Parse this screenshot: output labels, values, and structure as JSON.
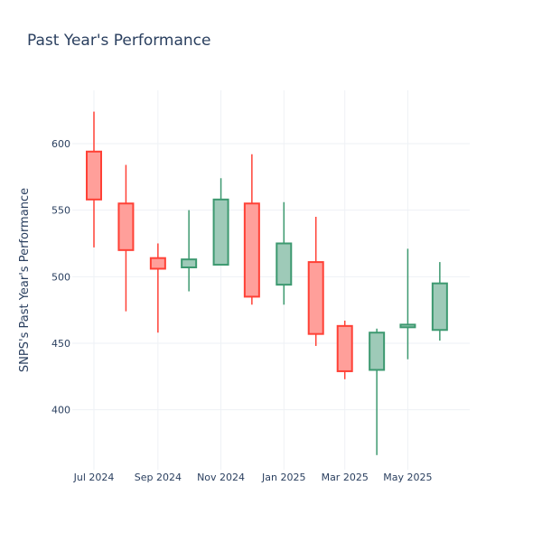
{
  "chart_data": {
    "type": "candlestick",
    "title": "Past Year's Performance",
    "xlabel": "",
    "ylabel": "SNPS's Past Year's Performance",
    "xlim": [
      "2024-06-10",
      "2025-06-30"
    ],
    "ylim": [
      355,
      640
    ],
    "y_ticks": [
      400,
      450,
      500,
      550,
      600
    ],
    "x_ticks": [
      {
        "date": "2024-07-01",
        "label": "Jul 2024"
      },
      {
        "date": "2024-09-01",
        "label": "Sep 2024"
      },
      {
        "date": "2024-11-01",
        "label": "Nov 2024"
      },
      {
        "date": "2025-01-01",
        "label": "Jan 2025"
      },
      {
        "date": "2025-03-01",
        "label": "Mar 2025"
      },
      {
        "date": "2025-05-01",
        "label": "May 2025"
      }
    ],
    "grid": true,
    "candles": [
      {
        "date": "2024-07-01",
        "open": 594,
        "high": 624,
        "low": 522,
        "close": 558
      },
      {
        "date": "2024-08-01",
        "open": 555,
        "high": 584,
        "low": 474,
        "close": 520
      },
      {
        "date": "2024-09-01",
        "open": 514,
        "high": 525,
        "low": 458,
        "close": 506
      },
      {
        "date": "2024-10-01",
        "open": 507,
        "high": 550,
        "low": 489,
        "close": 513
      },
      {
        "date": "2024-11-01",
        "open": 509,
        "high": 574,
        "low": 509,
        "close": 558
      },
      {
        "date": "2024-12-01",
        "open": 555,
        "high": 592,
        "low": 479,
        "close": 485
      },
      {
        "date": "2025-01-01",
        "open": 494,
        "high": 556,
        "low": 479,
        "close": 525
      },
      {
        "date": "2025-02-01",
        "open": 511,
        "high": 545,
        "low": 448,
        "close": 457
      },
      {
        "date": "2025-03-01",
        "open": 463,
        "high": 467,
        "low": 423,
        "close": 429
      },
      {
        "date": "2025-04-01",
        "open": 430,
        "high": 461,
        "low": 366,
        "close": 458
      },
      {
        "date": "2025-05-01",
        "open": 462,
        "high": 521,
        "low": 438,
        "close": 464
      },
      {
        "date": "2025-06-01",
        "open": 460,
        "high": 511,
        "low": 452,
        "close": 495
      }
    ],
    "colors": {
      "increasing_line": "#3d9970",
      "increasing_fill": "#9ecab8",
      "decreasing_line": "#ff4136",
      "decreasing_fill": "#ff9f9a",
      "text": "#2a3f5f",
      "grid": "#eef1f5"
    }
  }
}
